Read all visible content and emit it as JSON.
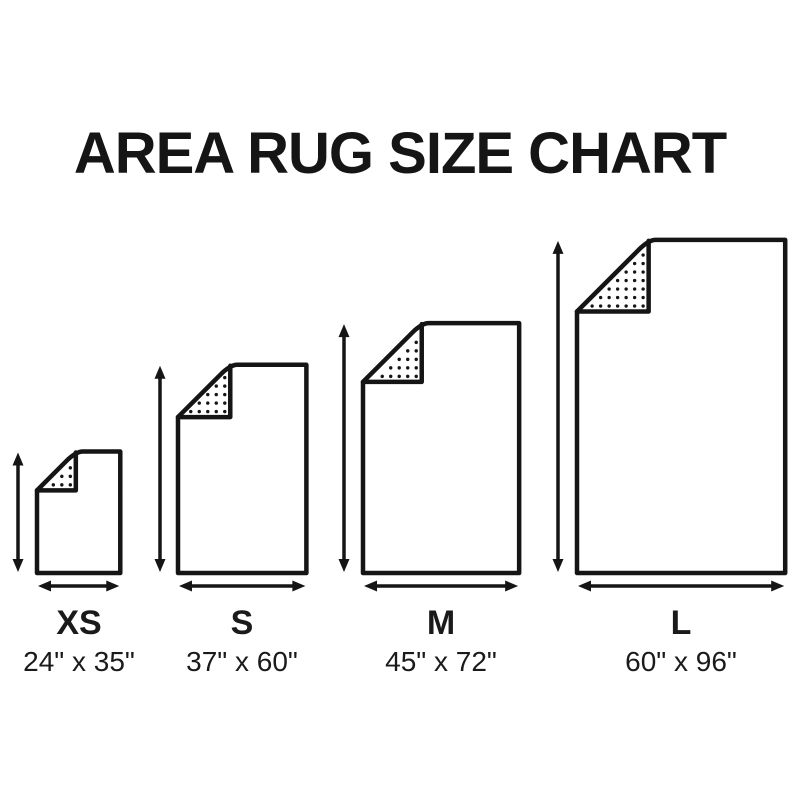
{
  "title": "AREA RUG SIZE CHART",
  "unit": "inches",
  "colors": {
    "ink": "#151515",
    "background": "#ffffff"
  },
  "rugs": [
    {
      "id": "xs",
      "label": "XS",
      "dimensions": "24\" x 35\"",
      "width_in": 24,
      "height_in": 35
    },
    {
      "id": "s",
      "label": "S",
      "dimensions": "37\" x 60\"",
      "width_in": 37,
      "height_in": 60
    },
    {
      "id": "m",
      "label": "M",
      "dimensions": "45\" x 72\"",
      "width_in": 45,
      "height_in": 72
    },
    {
      "id": "l",
      "label": "L",
      "dimensions": "60\" x 96\"",
      "width_in": 60,
      "height_in": 96
    }
  ]
}
